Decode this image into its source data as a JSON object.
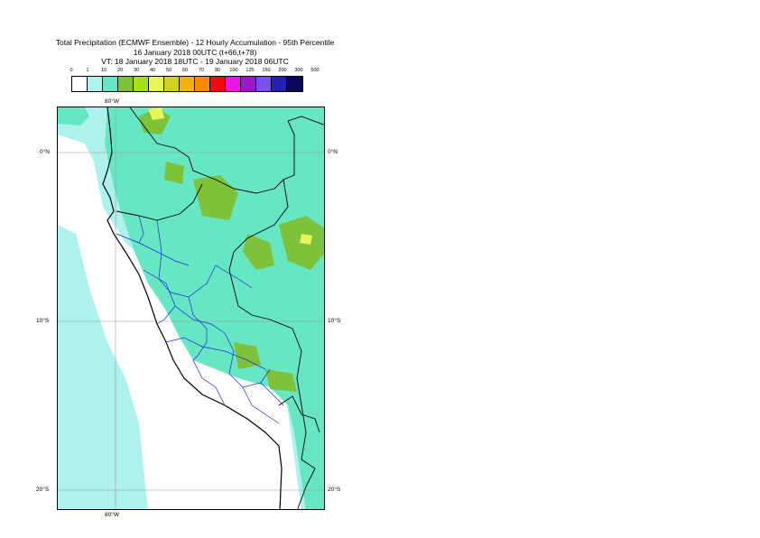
{
  "title": {
    "line1": "Total Precipitation (ECMWF Ensemble) - 12 Hourly Accumulation - 95th Percentile",
    "line2": "16 January 2018 00UTC (t+66,t+78)",
    "line3": "VT: 18 January 2018 18UTC - 19 January 2018 06UTC"
  },
  "legend": {
    "thresholds": [
      "0",
      "1",
      "10",
      "20",
      "30",
      "40",
      "50",
      "60",
      "70",
      "80",
      "100",
      "125",
      "150",
      "200",
      "300",
      "500"
    ],
    "colors": [
      "#ffffff",
      "#aef2ee",
      "#66e6c2",
      "#7ec23a",
      "#a6e01c",
      "#e6f55a",
      "#d2d21a",
      "#f2b20a",
      "#fa8a06",
      "#f50a0a",
      "#e619e6",
      "#9a18c8",
      "#7752ee",
      "#2620b0",
      "#0a0a5a"
    ]
  },
  "axes": {
    "lon_top": "80°W",
    "lon_bottom": "80°W",
    "lat_left": [
      "0°N",
      "10°S",
      "20°S"
    ],
    "lat_right": [
      "0°N",
      "10°S",
      "20°S"
    ]
  }
}
